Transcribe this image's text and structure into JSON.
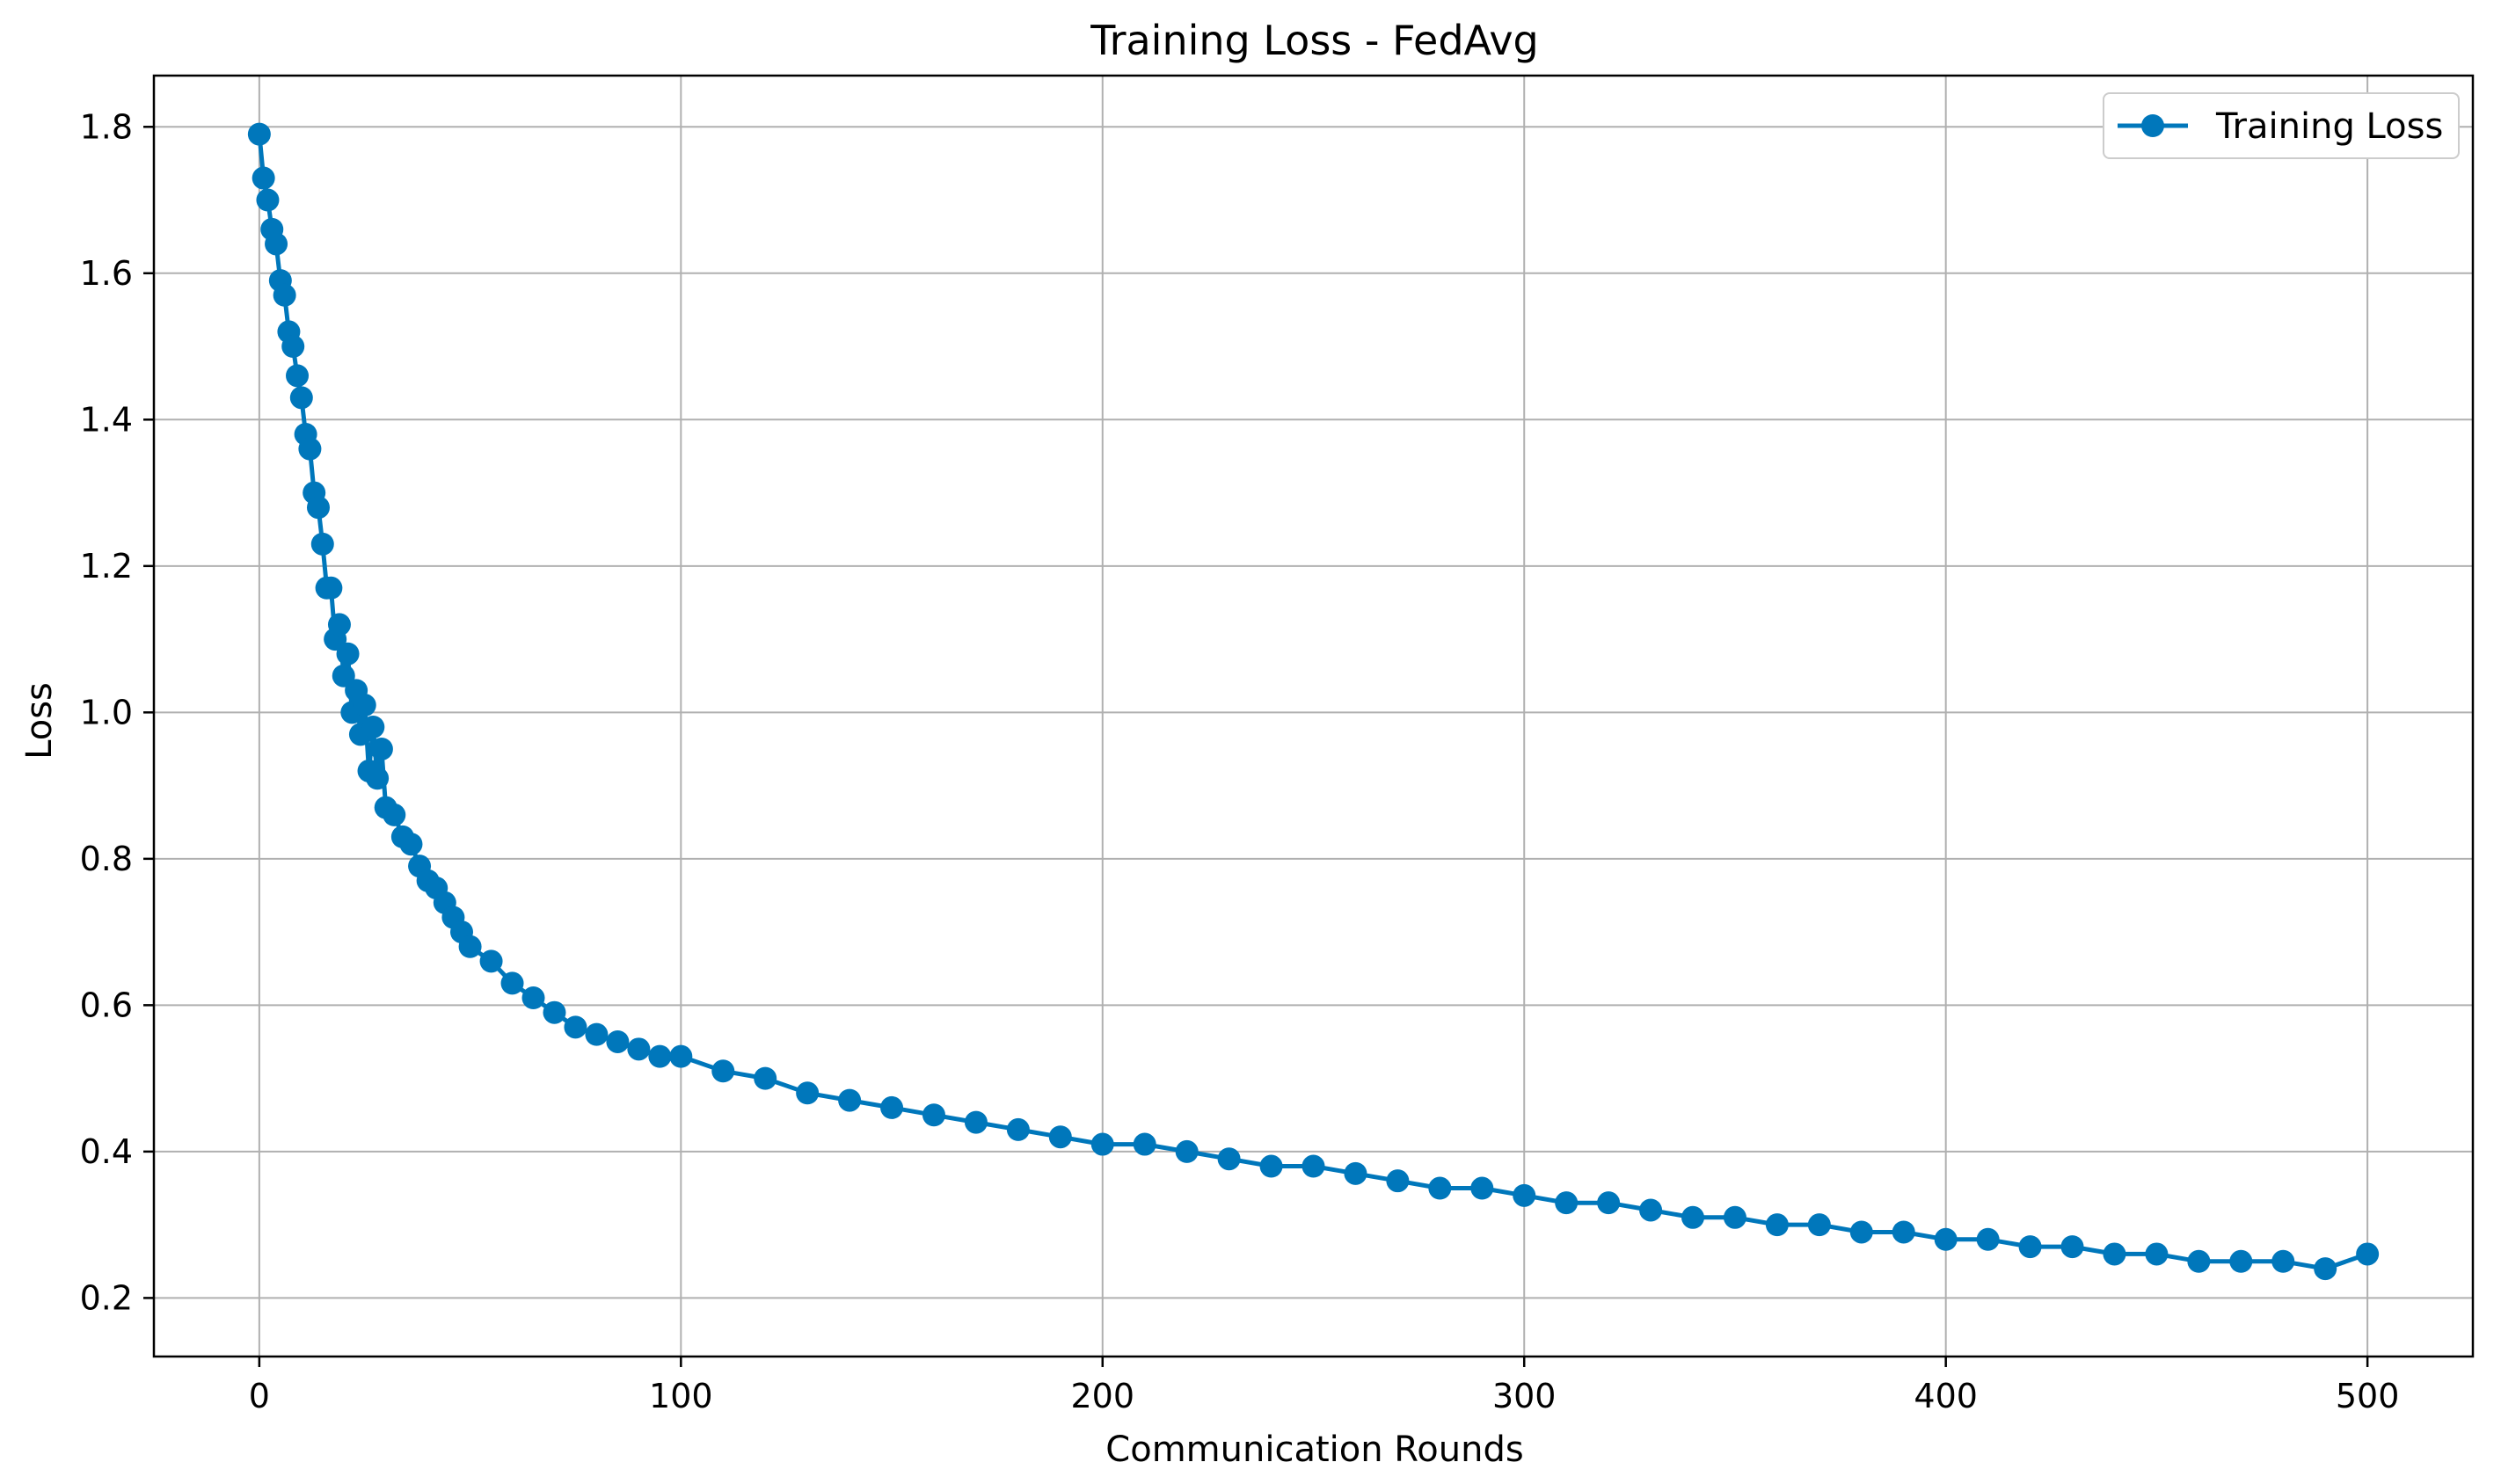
{
  "chart_data": {
    "type": "line",
    "title": "Training Loss - FedAvg",
    "xlabel": "Communication Rounds",
    "ylabel": "Loss",
    "xlim": [
      -25,
      525
    ],
    "ylim": [
      0.12,
      1.87
    ],
    "xticks": [
      0,
      100,
      200,
      300,
      400,
      500
    ],
    "yticks": [
      0.2,
      0.4,
      0.6,
      0.8,
      1.0,
      1.2,
      1.4,
      1.6,
      1.8
    ],
    "ytick_labels": [
      "0.2",
      "0.4",
      "0.6",
      "0.8",
      "1.0",
      "1.2",
      "1.4",
      "1.6",
      "1.8"
    ],
    "grid": true,
    "legend_position": "top-right",
    "line_color": "#0077bb",
    "series": [
      {
        "name": "Training Loss",
        "marker": "circle",
        "x": [
          0,
          1,
          2,
          3,
          4,
          5,
          6,
          7,
          8,
          9,
          10,
          11,
          12,
          13,
          14,
          15,
          16,
          17,
          18,
          19,
          20,
          21,
          22,
          23,
          24,
          25,
          26,
          27,
          28,
          29,
          30,
          32,
          34,
          36,
          38,
          40,
          42,
          44,
          46,
          48,
          50,
          55,
          60,
          65,
          70,
          75,
          80,
          85,
          90,
          95,
          100,
          110,
          120,
          130,
          140,
          150,
          160,
          170,
          180,
          190,
          200,
          210,
          220,
          230,
          240,
          250,
          260,
          270,
          280,
          290,
          300,
          310,
          320,
          330,
          340,
          350,
          360,
          370,
          380,
          390,
          400,
          410,
          420,
          430,
          440,
          450,
          460,
          470,
          480,
          490,
          500
        ],
        "y": [
          1.79,
          1.73,
          1.7,
          1.66,
          1.64,
          1.59,
          1.57,
          1.52,
          1.5,
          1.46,
          1.43,
          1.38,
          1.36,
          1.3,
          1.28,
          1.23,
          1.17,
          1.17,
          1.1,
          1.12,
          1.05,
          1.08,
          1.0,
          1.03,
          0.97,
          1.01,
          0.92,
          0.98,
          0.91,
          0.95,
          0.87,
          0.86,
          0.83,
          0.82,
          0.79,
          0.77,
          0.76,
          0.74,
          0.72,
          0.7,
          0.68,
          0.66,
          0.63,
          0.61,
          0.59,
          0.57,
          0.56,
          0.55,
          0.54,
          0.53,
          0.53,
          0.51,
          0.5,
          0.48,
          0.47,
          0.46,
          0.45,
          0.44,
          0.43,
          0.42,
          0.41,
          0.41,
          0.4,
          0.39,
          0.38,
          0.38,
          0.37,
          0.36,
          0.35,
          0.35,
          0.34,
          0.33,
          0.33,
          0.32,
          0.31,
          0.31,
          0.3,
          0.3,
          0.29,
          0.29,
          0.28,
          0.28,
          0.27,
          0.27,
          0.26,
          0.26,
          0.25,
          0.25,
          0.25,
          0.24,
          0.26
        ]
      }
    ]
  }
}
